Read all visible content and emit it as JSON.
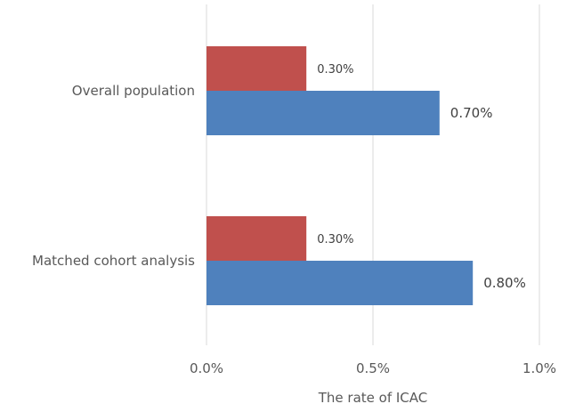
{
  "chart_data": {
    "type": "bar",
    "orientation": "horizontal",
    "title": "",
    "xlabel": "The rate of ICAC",
    "ylabel": "",
    "xlim": [
      0,
      1.0
    ],
    "x_ticks": [
      0,
      0.5,
      1.0
    ],
    "x_tick_labels": [
      "0.0%",
      "0.5%",
      "1.0%"
    ],
    "grid": "vertical",
    "legend": "none",
    "categories": [
      "Overall population",
      "Matched cohort analysis"
    ],
    "series": [
      {
        "name": "series-red",
        "color": "#C0504D",
        "values": [
          0.3,
          0.3
        ],
        "labels": [
          "0.30%",
          "0.30%"
        ]
      },
      {
        "name": "series-blue",
        "color": "#4F81BD",
        "values": [
          0.7,
          0.8
        ],
        "labels": [
          "0.70%",
          "0.80%"
        ]
      }
    ]
  }
}
